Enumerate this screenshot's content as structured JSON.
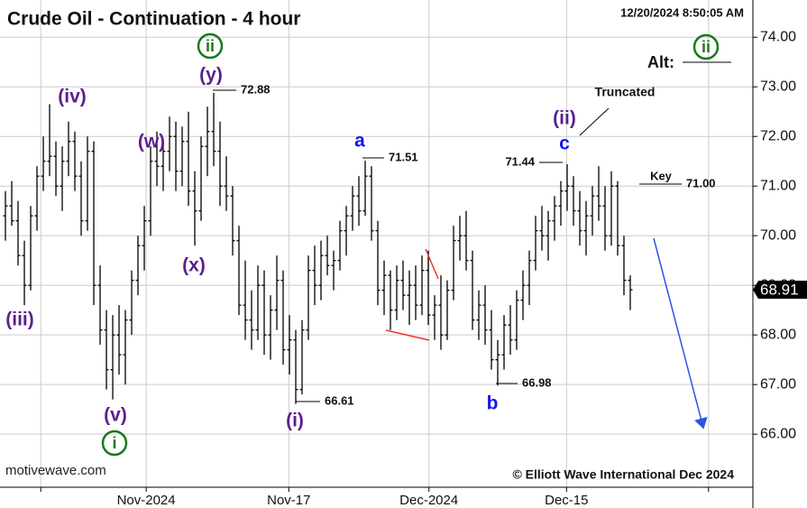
{
  "chart_data": {
    "type": "ohlc",
    "title": "Crude Oil - Continuation - 4 hour",
    "timestamp": "12/20/2024 8:50:05 AM",
    "color": "#000000",
    "bars": [
      [
        70.4,
        70.9,
        69.9,
        70.6
      ],
      [
        70.6,
        71.1,
        70.2,
        70.3
      ],
      [
        70.3,
        70.7,
        69.4,
        69.6
      ],
      [
        69.6,
        69.9,
        68.6,
        69.0
      ],
      [
        69.0,
        70.6,
        68.9,
        70.4
      ],
      [
        70.4,
        71.4,
        70.1,
        71.2
      ],
      [
        71.2,
        72.0,
        70.9,
        71.5
      ],
      [
        71.5,
        72.65,
        71.2,
        71.6
      ],
      [
        71.6,
        71.9,
        70.8,
        71.0
      ],
      [
        71.0,
        71.8,
        70.5,
        71.5
      ],
      [
        71.5,
        72.3,
        71.2,
        71.9
      ],
      [
        71.9,
        72.1,
        70.9,
        71.2
      ],
      [
        71.2,
        71.5,
        70.0,
        70.3
      ],
      [
        70.3,
        72.0,
        70.1,
        71.7
      ],
      [
        71.7,
        71.9,
        68.6,
        69.0
      ],
      [
        69.0,
        69.4,
        67.8,
        68.1
      ],
      [
        68.1,
        68.5,
        66.9,
        67.3
      ],
      [
        67.3,
        68.4,
        66.7,
        68.0
      ],
      [
        68.0,
        68.6,
        67.2,
        67.6
      ],
      [
        67.6,
        68.5,
        67.0,
        68.3
      ],
      [
        68.3,
        69.3,
        68.0,
        69.1
      ],
      [
        69.1,
        70.0,
        68.8,
        69.8
      ],
      [
        69.8,
        70.6,
        69.3,
        70.3
      ],
      [
        70.3,
        71.8,
        70.0,
        71.5
      ],
      [
        71.5,
        72.1,
        71.0,
        71.4
      ],
      [
        71.4,
        71.9,
        70.9,
        71.7
      ],
      [
        71.7,
        72.4,
        71.3,
        72.0
      ],
      [
        72.0,
        72.3,
        70.9,
        71.3
      ],
      [
        71.3,
        72.2,
        71.0,
        71.9
      ],
      [
        71.9,
        72.5,
        70.6,
        70.9
      ],
      [
        70.9,
        71.3,
        69.8,
        70.5
      ],
      [
        70.5,
        72.0,
        70.3,
        71.8
      ],
      [
        71.8,
        72.6,
        71.2,
        72.1
      ],
      [
        72.1,
        72.88,
        71.4,
        71.7
      ],
      [
        71.7,
        72.3,
        70.6,
        71.0
      ],
      [
        71.0,
        71.6,
        70.5,
        70.8
      ],
      [
        70.8,
        71.0,
        69.6,
        69.9
      ],
      [
        69.9,
        70.2,
        68.4,
        68.6
      ],
      [
        68.6,
        69.5,
        67.9,
        68.3
      ],
      [
        68.3,
        68.9,
        67.7,
        68.1
      ],
      [
        68.1,
        69.4,
        67.9,
        69.0
      ],
      [
        69.0,
        69.3,
        67.6,
        68.0
      ],
      [
        68.0,
        68.8,
        67.5,
        68.5
      ],
      [
        68.5,
        69.6,
        68.1,
        69.1
      ],
      [
        69.1,
        69.3,
        67.4,
        67.7
      ],
      [
        67.7,
        68.4,
        67.2,
        67.9
      ],
      [
        67.9,
        68.1,
        66.61,
        66.9
      ],
      [
        66.9,
        68.3,
        66.8,
        68.1
      ],
      [
        68.1,
        69.6,
        67.9,
        69.3
      ],
      [
        69.3,
        69.8,
        68.6,
        69.0
      ],
      [
        69.0,
        69.9,
        68.7,
        69.6
      ],
      [
        69.6,
        70.0,
        69.2,
        69.4
      ],
      [
        69.4,
        69.7,
        68.9,
        69.5
      ],
      [
        69.5,
        70.3,
        69.3,
        70.1
      ],
      [
        70.1,
        70.6,
        69.6,
        70.4
      ],
      [
        70.4,
        71.0,
        70.1,
        70.8
      ],
      [
        70.8,
        71.2,
        70.2,
        70.5
      ],
      [
        70.5,
        71.51,
        70.4,
        71.2
      ],
      [
        71.2,
        71.4,
        69.9,
        70.1
      ],
      [
        70.1,
        70.3,
        68.6,
        68.9
      ],
      [
        68.9,
        69.5,
        68.4,
        69.2
      ],
      [
        69.2,
        69.3,
        68.1,
        68.5
      ],
      [
        68.5,
        69.4,
        68.3,
        69.1
      ],
      [
        69.1,
        69.5,
        68.5,
        68.8
      ],
      [
        68.8,
        69.3,
        68.2,
        69.0
      ],
      [
        69.0,
        69.4,
        68.3,
        68.6
      ],
      [
        68.6,
        69.6,
        68.4,
        69.3
      ],
      [
        69.3,
        69.7,
        68.2,
        68.4
      ],
      [
        68.4,
        68.8,
        67.9,
        68.6
      ],
      [
        68.6,
        69.2,
        67.7,
        68.0
      ],
      [
        68.0,
        69.1,
        67.9,
        68.9
      ],
      [
        68.9,
        70.2,
        68.7,
        69.9
      ],
      [
        69.9,
        70.4,
        69.5,
        70.0
      ],
      [
        70.0,
        70.5,
        69.3,
        69.5
      ],
      [
        69.5,
        69.7,
        68.1,
        68.3
      ],
      [
        68.3,
        68.9,
        67.9,
        68.6
      ],
      [
        68.6,
        69.0,
        67.8,
        68.1
      ],
      [
        68.1,
        68.5,
        67.3,
        67.5
      ],
      [
        67.5,
        67.9,
        66.98,
        67.6
      ],
      [
        67.6,
        68.4,
        67.3,
        68.2
      ],
      [
        68.2,
        68.6,
        67.6,
        67.9
      ],
      [
        67.9,
        68.9,
        67.7,
        68.7
      ],
      [
        68.7,
        69.3,
        68.3,
        69.0
      ],
      [
        69.0,
        69.7,
        68.6,
        69.5
      ],
      [
        69.5,
        70.4,
        69.3,
        70.1
      ],
      [
        70.1,
        70.6,
        69.7,
        70.0
      ],
      [
        70.0,
        70.5,
        69.5,
        70.3
      ],
      [
        70.3,
        70.8,
        69.9,
        70.6
      ],
      [
        70.6,
        71.1,
        70.2,
        70.9
      ],
      [
        70.9,
        71.44,
        70.5,
        71.0
      ],
      [
        71.0,
        71.2,
        70.2,
        70.5
      ],
      [
        70.5,
        70.9,
        69.8,
        70.1
      ],
      [
        70.1,
        70.7,
        69.6,
        70.4
      ],
      [
        70.4,
        71.0,
        70.0,
        70.8
      ],
      [
        70.8,
        71.4,
        70.3,
        70.6
      ],
      [
        70.6,
        71.0,
        69.7,
        70.0
      ],
      [
        70.0,
        71.3,
        69.8,
        71.0
      ],
      [
        71.0,
        71.1,
        69.6,
        69.8
      ],
      [
        69.8,
        70.0,
        68.8,
        69.1
      ],
      [
        69.1,
        69.2,
        68.5,
        68.91
      ]
    ],
    "last_price": 68.91,
    "xlim": [
      -0.86,
      118.43
    ],
    "xticks": [
      {
        "value": 5.6,
        "label": null
      },
      {
        "value": 22.3,
        "label": "Nov-2024"
      },
      {
        "value": 44.9,
        "label": "Nov-17"
      },
      {
        "value": 67.1,
        "label": "Dec-2024"
      },
      {
        "value": 88.9,
        "label": "Dec-15"
      },
      {
        "value": 111.4,
        "label": null
      }
    ],
    "ylim": [
      64.93,
      74.75
    ],
    "yticks": [
      {
        "value": 74,
        "label": "74.00"
      },
      {
        "value": 73,
        "label": "73.00"
      },
      {
        "value": 72,
        "label": "72.00"
      },
      {
        "value": 71,
        "label": "71.00"
      },
      {
        "value": 70,
        "label": "70.00"
      },
      {
        "value": 69,
        "label": "69.00"
      },
      {
        "value": 68,
        "label": "68.00"
      },
      {
        "value": 67,
        "label": "67.00"
      },
      {
        "value": 66,
        "label": "66.00"
      }
    ],
    "grid": true,
    "annotations": [
      "(iv)",
      "(iii)",
      "(v)",
      "i",
      "(w)",
      "ii",
      "(y)",
      "(x)",
      "72.88",
      "a",
      "71.51",
      "(i)",
      "66.61",
      "b",
      "66.98",
      "71.44",
      "c",
      "(ii)",
      "Truncated",
      "Alt:",
      "ii",
      "Key",
      "71.00",
      "motivewave.com",
      "© Elliott Wave International Dec 2024"
    ]
  }
}
